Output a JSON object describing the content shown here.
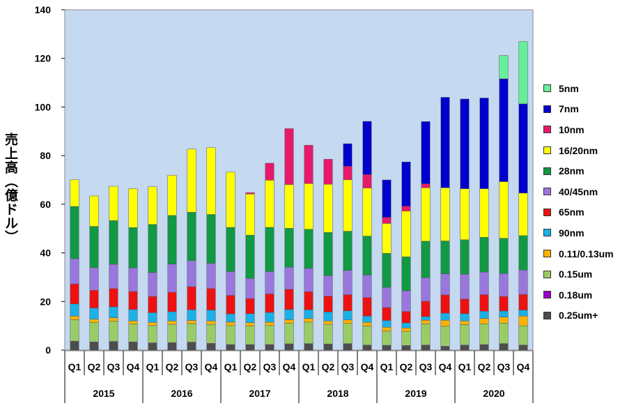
{
  "chart_data": {
    "type": "bar",
    "stacked": true,
    "ylabel": "売上高（億ドル）",
    "ylim": [
      0,
      140
    ],
    "yticks": [
      0,
      20,
      40,
      60,
      80,
      100,
      120,
      140
    ],
    "grid": false,
    "legend_position": "right",
    "years": [
      "2015",
      "2016",
      "2017",
      "2018",
      "2019",
      "2020"
    ],
    "quarters": [
      "Q1",
      "Q2",
      "Q3",
      "Q4"
    ],
    "categories": [
      "2015 Q1",
      "2015 Q2",
      "2015 Q3",
      "2015 Q4",
      "2016 Q1",
      "2016 Q2",
      "2016 Q3",
      "2016 Q4",
      "2017 Q1",
      "2017 Q2",
      "2017 Q3",
      "2017 Q4",
      "2018 Q1",
      "2018 Q2",
      "2018 Q3",
      "2018 Q4",
      "2019 Q1",
      "2019 Q2",
      "2019 Q3",
      "2019 Q4",
      "2020 Q1",
      "2020 Q2",
      "2020 Q3",
      "2020 Q4"
    ],
    "series": [
      {
        "name": "0.25um+",
        "color": "#4d4d4d",
        "values": [
          3.5,
          3.2,
          3.4,
          3.2,
          2.8,
          2.9,
          3.1,
          2.6,
          2.1,
          2.1,
          2.1,
          2.4,
          2.5,
          2.3,
          2.5,
          1.9,
          1.8,
          1.7,
          1.9,
          1.4,
          1.9,
          2.1,
          2.5,
          1.9
        ]
      },
      {
        "name": "0.18um",
        "color": "#9900cc",
        "values": [
          0.2,
          0.2,
          0.2,
          0.2,
          0.2,
          0.2,
          0.2,
          0.2,
          0.2,
          0.2,
          0.2,
          0.2,
          0.2,
          0.2,
          0.2,
          0.2,
          0.2,
          0.2,
          0.2,
          0.2,
          0.2,
          0.2,
          0.2,
          0.2
        ]
      },
      {
        "name": "0.15um",
        "color": "#99cc66",
        "values": [
          8.8,
          7.9,
          8.3,
          7.3,
          7.1,
          7.5,
          7.6,
          7.8,
          7.8,
          7.6,
          7.8,
          8.4,
          8.8,
          8.1,
          8.3,
          7.8,
          5.8,
          5.8,
          8.7,
          8.2,
          8.4,
          8.5,
          8.4,
          7.9
        ]
      },
      {
        "name": "0.11/0.13um",
        "color": "#ffb300",
        "values": [
          1.5,
          1.4,
          1.4,
          1.3,
          1.3,
          1.4,
          1.3,
          1.4,
          1.4,
          1.4,
          1.4,
          1.5,
          1.5,
          1.4,
          1.4,
          1.5,
          1.6,
          1.4,
          1.5,
          2.5,
          1.5,
          2.2,
          2.5,
          4.0
        ]
      },
      {
        "name": "90nm",
        "color": "#1ab0e8",
        "values": [
          5.0,
          4.6,
          4.5,
          4.7,
          4.0,
          3.8,
          4.4,
          4.5,
          3.4,
          3.7,
          4.0,
          4.2,
          3.6,
          3.7,
          3.8,
          2.6,
          2.8,
          2.1,
          1.5,
          2.9,
          3.0,
          3.0,
          2.5,
          2.5
        ]
      },
      {
        "name": "65nm",
        "color": "#ee1111",
        "values": [
          8.2,
          7.3,
          7.5,
          7.4,
          6.7,
          8.0,
          9.5,
          8.8,
          7.6,
          6.2,
          7.6,
          8.3,
          7.4,
          6.5,
          6.6,
          7.6,
          5.3,
          4.7,
          6.3,
          7.5,
          6.0,
          6.8,
          6.0,
          6.4
        ]
      },
      {
        "name": "40/45nm",
        "color": "#9977dd",
        "values": [
          10.4,
          9.3,
          10.0,
          9.7,
          9.8,
          11.6,
          10.7,
          10.4,
          9.8,
          8.3,
          9.2,
          9.1,
          9.6,
          8.4,
          10.0,
          9.3,
          8.3,
          8.5,
          9.7,
          8.7,
          10.2,
          9.3,
          9.4,
          10.0
        ]
      },
      {
        "name": "28nm",
        "color": "#119944",
        "values": [
          21.5,
          17.0,
          18.0,
          16.6,
          19.8,
          20.0,
          19.9,
          20.1,
          18.2,
          17.8,
          18.2,
          16.0,
          16.1,
          17.8,
          16.1,
          16.0,
          14.0,
          14.0,
          15.0,
          13.5,
          14.2,
          14.3,
          14.5,
          14.2
        ]
      },
      {
        "name": "16/20nm",
        "color": "#ffff00",
        "values": [
          11.0,
          12.5,
          14.1,
          16.0,
          15.5,
          16.5,
          26.0,
          27.5,
          22.7,
          16.9,
          19.4,
          18.0,
          18.8,
          19.8,
          21.2,
          19.8,
          12.3,
          18.8,
          22.0,
          21.9,
          21.0,
          20.0,
          23.3,
          17.5
        ]
      },
      {
        "name": "10nm",
        "color": "#e8196a",
        "values": [
          0,
          0,
          0,
          0,
          0,
          0,
          0,
          0,
          0,
          0.6,
          7.0,
          23.0,
          15.8,
          10.3,
          5.5,
          5.5,
          2.5,
          2.0,
          1.6,
          0,
          0,
          0,
          0,
          0
        ]
      },
      {
        "name": "7nm",
        "color": "#0000cc",
        "values": [
          0,
          0,
          0,
          0,
          0,
          0,
          0,
          0,
          0,
          0,
          0,
          0,
          0,
          0,
          9.3,
          21.9,
          15.4,
          18.2,
          25.6,
          37.2,
          36.9,
          37.3,
          42.3,
          36.7
        ]
      },
      {
        "name": "5nm",
        "color": "#66ee99",
        "values": [
          0,
          0,
          0,
          0,
          0,
          0,
          0,
          0,
          0,
          0,
          0,
          0,
          0,
          0,
          0,
          0,
          0,
          0,
          0,
          0,
          0,
          0,
          9.6,
          25.6
        ]
      }
    ]
  }
}
